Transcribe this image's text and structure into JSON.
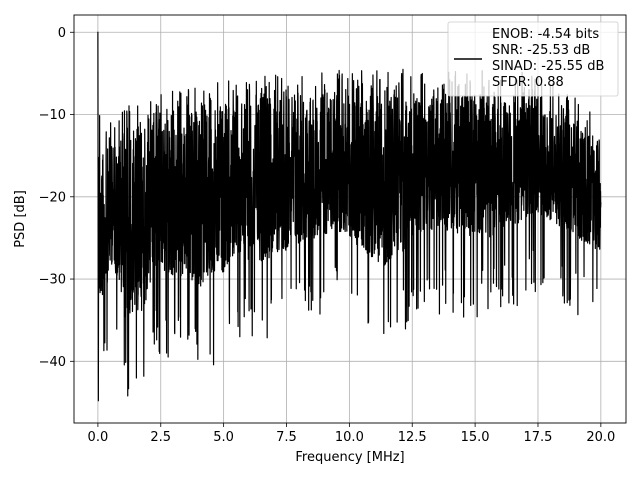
{
  "chart_data": {
    "type": "line",
    "title": "",
    "xlabel": "Frequency [MHz]",
    "ylabel": "PSD [dB]",
    "xlim": [
      -0.95,
      21.0
    ],
    "ylim": [
      -47.5,
      2.1
    ],
    "x_ticks": [
      0.0,
      2.5,
      5.0,
      7.5,
      10.0,
      12.5,
      15.0,
      17.5,
      20.0
    ],
    "x_tick_labels": [
      "0.0",
      "2.5",
      "5.0",
      "7.5",
      "10.0",
      "12.5",
      "15.0",
      "17.5",
      "20.0"
    ],
    "y_ticks": [
      0,
      -10,
      -20,
      -30,
      -40
    ],
    "y_tick_labels": [
      "0",
      "−10",
      "−20",
      "−30",
      "−40"
    ],
    "grid": true,
    "legend_position": "top-right",
    "series": [
      {
        "name": "ENOB: -4.54 bits\nSNR: -25.53 dB\nSINAD: -25.55 dB\nSFDR: 0.88",
        "color": "#000000",
        "description": "dense noise-like spectrum; start value and approximate envelope below, detailed points are noise",
        "start_peak": 0.0,
        "x_range": [
          0.0,
          20.0
        ],
        "upper_envelope": {
          "x": [
            0.0,
            0.1,
            0.5,
            1.0,
            2.0,
            3.0,
            5.0,
            7.5,
            10.0,
            12.5,
            15.0,
            17.5,
            20.0
          ],
          "y": [
            0.0,
            -12.0,
            -10.5,
            -9.0,
            -8.0,
            -7.0,
            -6.0,
            -5.0,
            -4.5,
            -4.5,
            -4.5,
            -5.0,
            -10.0
          ]
        },
        "lower_envelope": {
          "x": [
            0.0,
            0.6,
            1.1,
            1.9,
            2.2,
            4.4,
            5.5,
            6.5,
            9.5,
            11.5,
            12.9,
            15.5,
            17.5,
            20.0
          ],
          "y": [
            -44.8,
            -37.8,
            -45.2,
            -43.5,
            -39.2,
            -41.2,
            -37.5,
            -37.8,
            -34.0,
            -38.8,
            -34.0,
            -35.0,
            -32.0,
            -36.8
          ]
        },
        "typical_range": [
          -25,
          -10
        ]
      }
    ],
    "legend_lines": [
      "ENOB: -4.54 bits",
      "SNR: -25.53 dB",
      "SINAD: -25.55 dB",
      "SFDR: 0.88"
    ]
  }
}
